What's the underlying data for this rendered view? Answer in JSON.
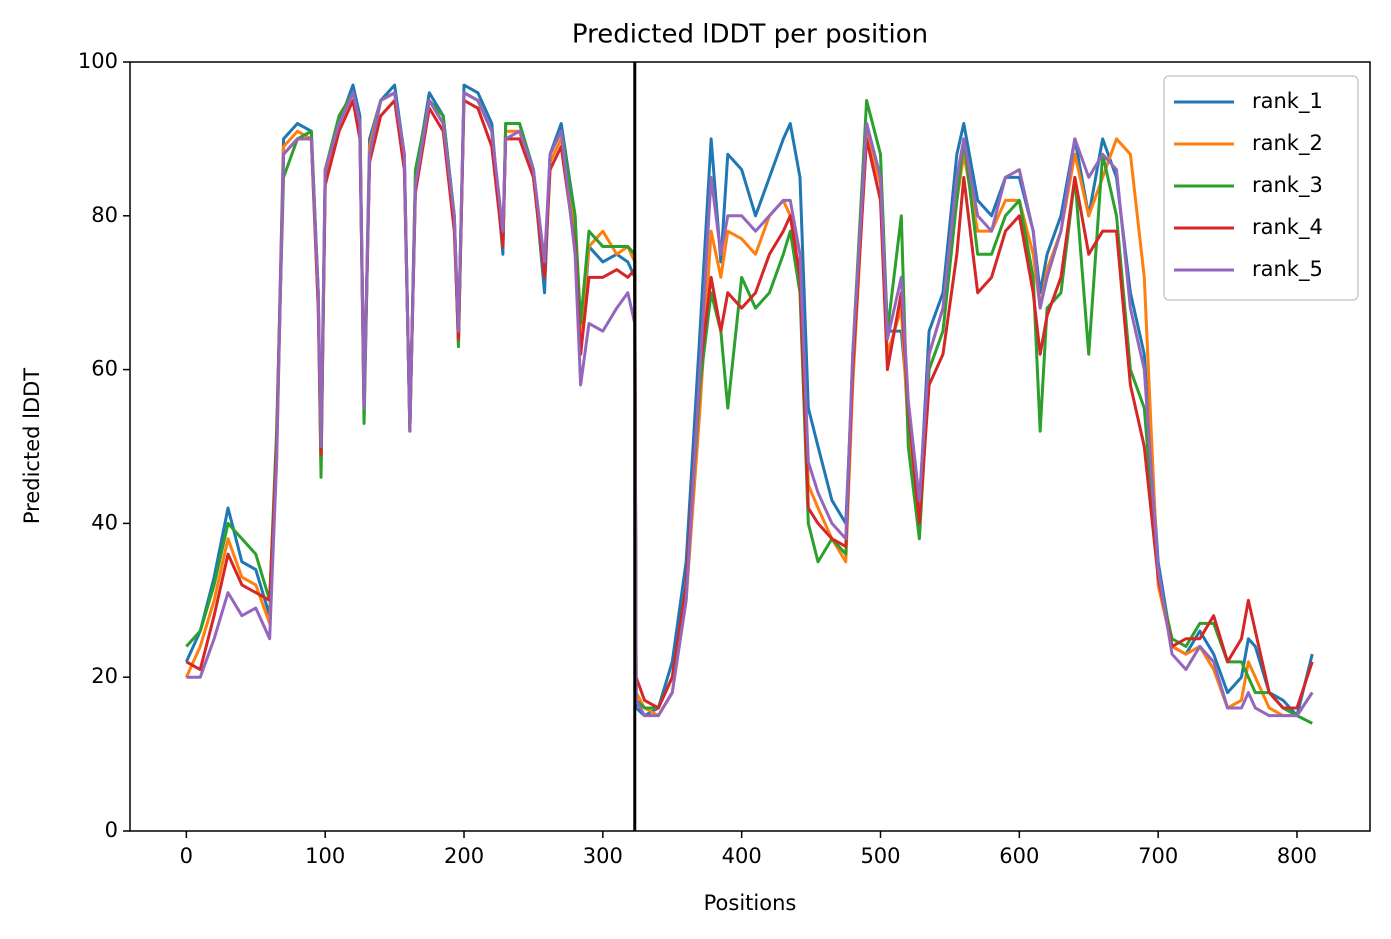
{
  "chart_data": {
    "type": "line",
    "title": "Predicted lDDT per position",
    "xlabel": "Positions",
    "ylabel": "Predicted lDDT",
    "x": [
      0,
      10,
      20,
      30,
      40,
      50,
      60,
      65,
      70,
      80,
      90,
      95,
      97,
      100,
      110,
      120,
      125,
      128,
      132,
      140,
      150,
      157,
      161,
      165,
      175,
      185,
      193,
      196,
      200,
      210,
      220,
      228,
      230,
      240,
      250,
      258,
      262,
      270,
      280,
      284,
      290,
      300,
      310,
      318,
      323,
      324,
      330,
      340,
      350,
      360,
      370,
      378,
      385,
      390,
      400,
      410,
      420,
      430,
      435,
      442,
      448,
      455,
      465,
      475,
      480,
      490,
      500,
      505,
      515,
      520,
      528,
      535,
      545,
      555,
      560,
      570,
      580,
      590,
      600,
      610,
      615,
      620,
      630,
      640,
      650,
      660,
      670,
      680,
      690,
      700,
      710,
      720,
      730,
      740,
      750,
      760,
      765,
      770,
      780,
      790,
      800,
      811
    ],
    "series": [
      {
        "name": "rank_1",
        "color": "#1f77b4",
        "values": [
          22,
          26,
          33,
          42,
          35,
          34,
          28,
          50,
          90,
          92,
          91,
          70,
          48,
          85,
          92,
          97,
          93,
          55,
          90,
          95,
          97,
          88,
          52,
          85,
          96,
          93,
          80,
          64,
          97,
          96,
          92,
          75,
          92,
          92,
          86,
          70,
          88,
          92,
          80,
          62,
          76,
          74,
          75,
          74,
          72,
          16,
          15,
          16,
          22,
          35,
          65,
          90,
          74,
          88,
          86,
          80,
          85,
          90,
          92,
          85,
          55,
          50,
          43,
          40,
          60,
          92,
          85,
          65,
          65,
          55,
          42,
          65,
          70,
          88,
          92,
          82,
          80,
          85,
          85,
          78,
          70,
          75,
          80,
          90,
          80,
          90,
          85,
          70,
          62,
          35,
          24,
          23,
          26,
          23,
          18,
          20,
          25,
          24,
          18,
          17,
          15,
          23
        ]
      },
      {
        "name": "rank_2",
        "color": "#ff7f0e",
        "values": [
          20,
          24,
          30,
          38,
          33,
          32,
          27,
          48,
          89,
          91,
          90,
          68,
          47,
          84,
          92,
          96,
          92,
          54,
          89,
          95,
          96,
          87,
          52,
          84,
          95,
          92,
          79,
          63,
          96,
          95,
          91,
          76,
          91,
          91,
          85,
          72,
          87,
          90,
          78,
          65,
          76,
          78,
          75,
          76,
          74,
          18,
          16,
          15,
          18,
          30,
          55,
          78,
          72,
          78,
          77,
          75,
          80,
          82,
          80,
          75,
          45,
          42,
          38,
          35,
          58,
          91,
          84,
          62,
          68,
          52,
          40,
          62,
          68,
          82,
          88,
          78,
          78,
          82,
          82,
          75,
          68,
          73,
          78,
          88,
          80,
          85,
          90,
          88,
          72,
          32,
          24,
          23,
          24,
          21,
          16,
          17,
          22,
          20,
          16,
          15,
          15,
          18
        ]
      },
      {
        "name": "rank_3",
        "color": "#2ca02c",
        "values": [
          24,
          26,
          32,
          40,
          38,
          36,
          30,
          52,
          85,
          90,
          91,
          70,
          46,
          86,
          93,
          96,
          92,
          53,
          88,
          95,
          96,
          88,
          52,
          86,
          95,
          93,
          80,
          63,
          96,
          95,
          91,
          76,
          92,
          92,
          86,
          72,
          88,
          91,
          80,
          66,
          78,
          76,
          76,
          76,
          75,
          17,
          16,
          16,
          20,
          32,
          58,
          70,
          65,
          55,
          72,
          68,
          70,
          75,
          78,
          70,
          40,
          35,
          38,
          36,
          62,
          95,
          88,
          65,
          80,
          50,
          38,
          60,
          65,
          82,
          90,
          75,
          75,
          80,
          82,
          72,
          52,
          68,
          70,
          85,
          62,
          88,
          80,
          60,
          55,
          33,
          25,
          24,
          27,
          27,
          22,
          22,
          20,
          18,
          18,
          16,
          15,
          14
        ]
      },
      {
        "name": "rank_4",
        "color": "#d62728",
        "values": [
          22,
          21,
          28,
          36,
          32,
          31,
          30,
          50,
          88,
          90,
          90,
          68,
          49,
          84,
          91,
          95,
          90,
          56,
          87,
          93,
          95,
          86,
          53,
          83,
          94,
          91,
          78,
          64,
          95,
          94,
          89,
          76,
          90,
          90,
          85,
          72,
          86,
          89,
          76,
          62,
          72,
          72,
          73,
          72,
          73,
          20,
          17,
          16,
          20,
          32,
          60,
          72,
          65,
          70,
          68,
          70,
          75,
          78,
          80,
          72,
          42,
          40,
          38,
          37,
          60,
          90,
          82,
          60,
          70,
          55,
          40,
          58,
          62,
          75,
          85,
          70,
          72,
          78,
          80,
          70,
          62,
          67,
          72,
          85,
          75,
          78,
          78,
          58,
          50,
          33,
          24,
          25,
          25,
          28,
          22,
          25,
          30,
          26,
          18,
          16,
          16,
          22
        ]
      },
      {
        "name": "rank_5",
        "color": "#9467bd",
        "values": [
          20,
          20,
          25,
          31,
          28,
          29,
          25,
          48,
          88,
          90,
          90,
          70,
          50,
          86,
          92,
          96,
          92,
          55,
          88,
          95,
          96,
          88,
          52,
          84,
          95,
          92,
          80,
          65,
          96,
          95,
          91,
          78,
          90,
          91,
          86,
          74,
          88,
          91,
          75,
          58,
          66,
          65,
          68,
          70,
          66,
          17,
          15,
          15,
          18,
          30,
          60,
          85,
          75,
          80,
          80,
          78,
          80,
          82,
          82,
          75,
          48,
          44,
          40,
          38,
          62,
          92,
          85,
          64,
          72,
          56,
          43,
          62,
          68,
          85,
          90,
          80,
          78,
          85,
          86,
          78,
          68,
          72,
          78,
          90,
          85,
          88,
          86,
          68,
          60,
          34,
          23,
          21,
          24,
          22,
          16,
          16,
          18,
          16,
          15,
          15,
          15,
          18
        ]
      }
    ],
    "vline": 323,
    "vline_color": "#000000",
    "xlim": [
      -40.6,
      852.6
    ],
    "ylim": [
      0,
      100
    ],
    "xticks": [
      0,
      100,
      200,
      300,
      400,
      500,
      600,
      700,
      800
    ],
    "yticks": [
      0,
      20,
      40,
      60,
      80,
      100
    ],
    "legend": "upper right"
  }
}
